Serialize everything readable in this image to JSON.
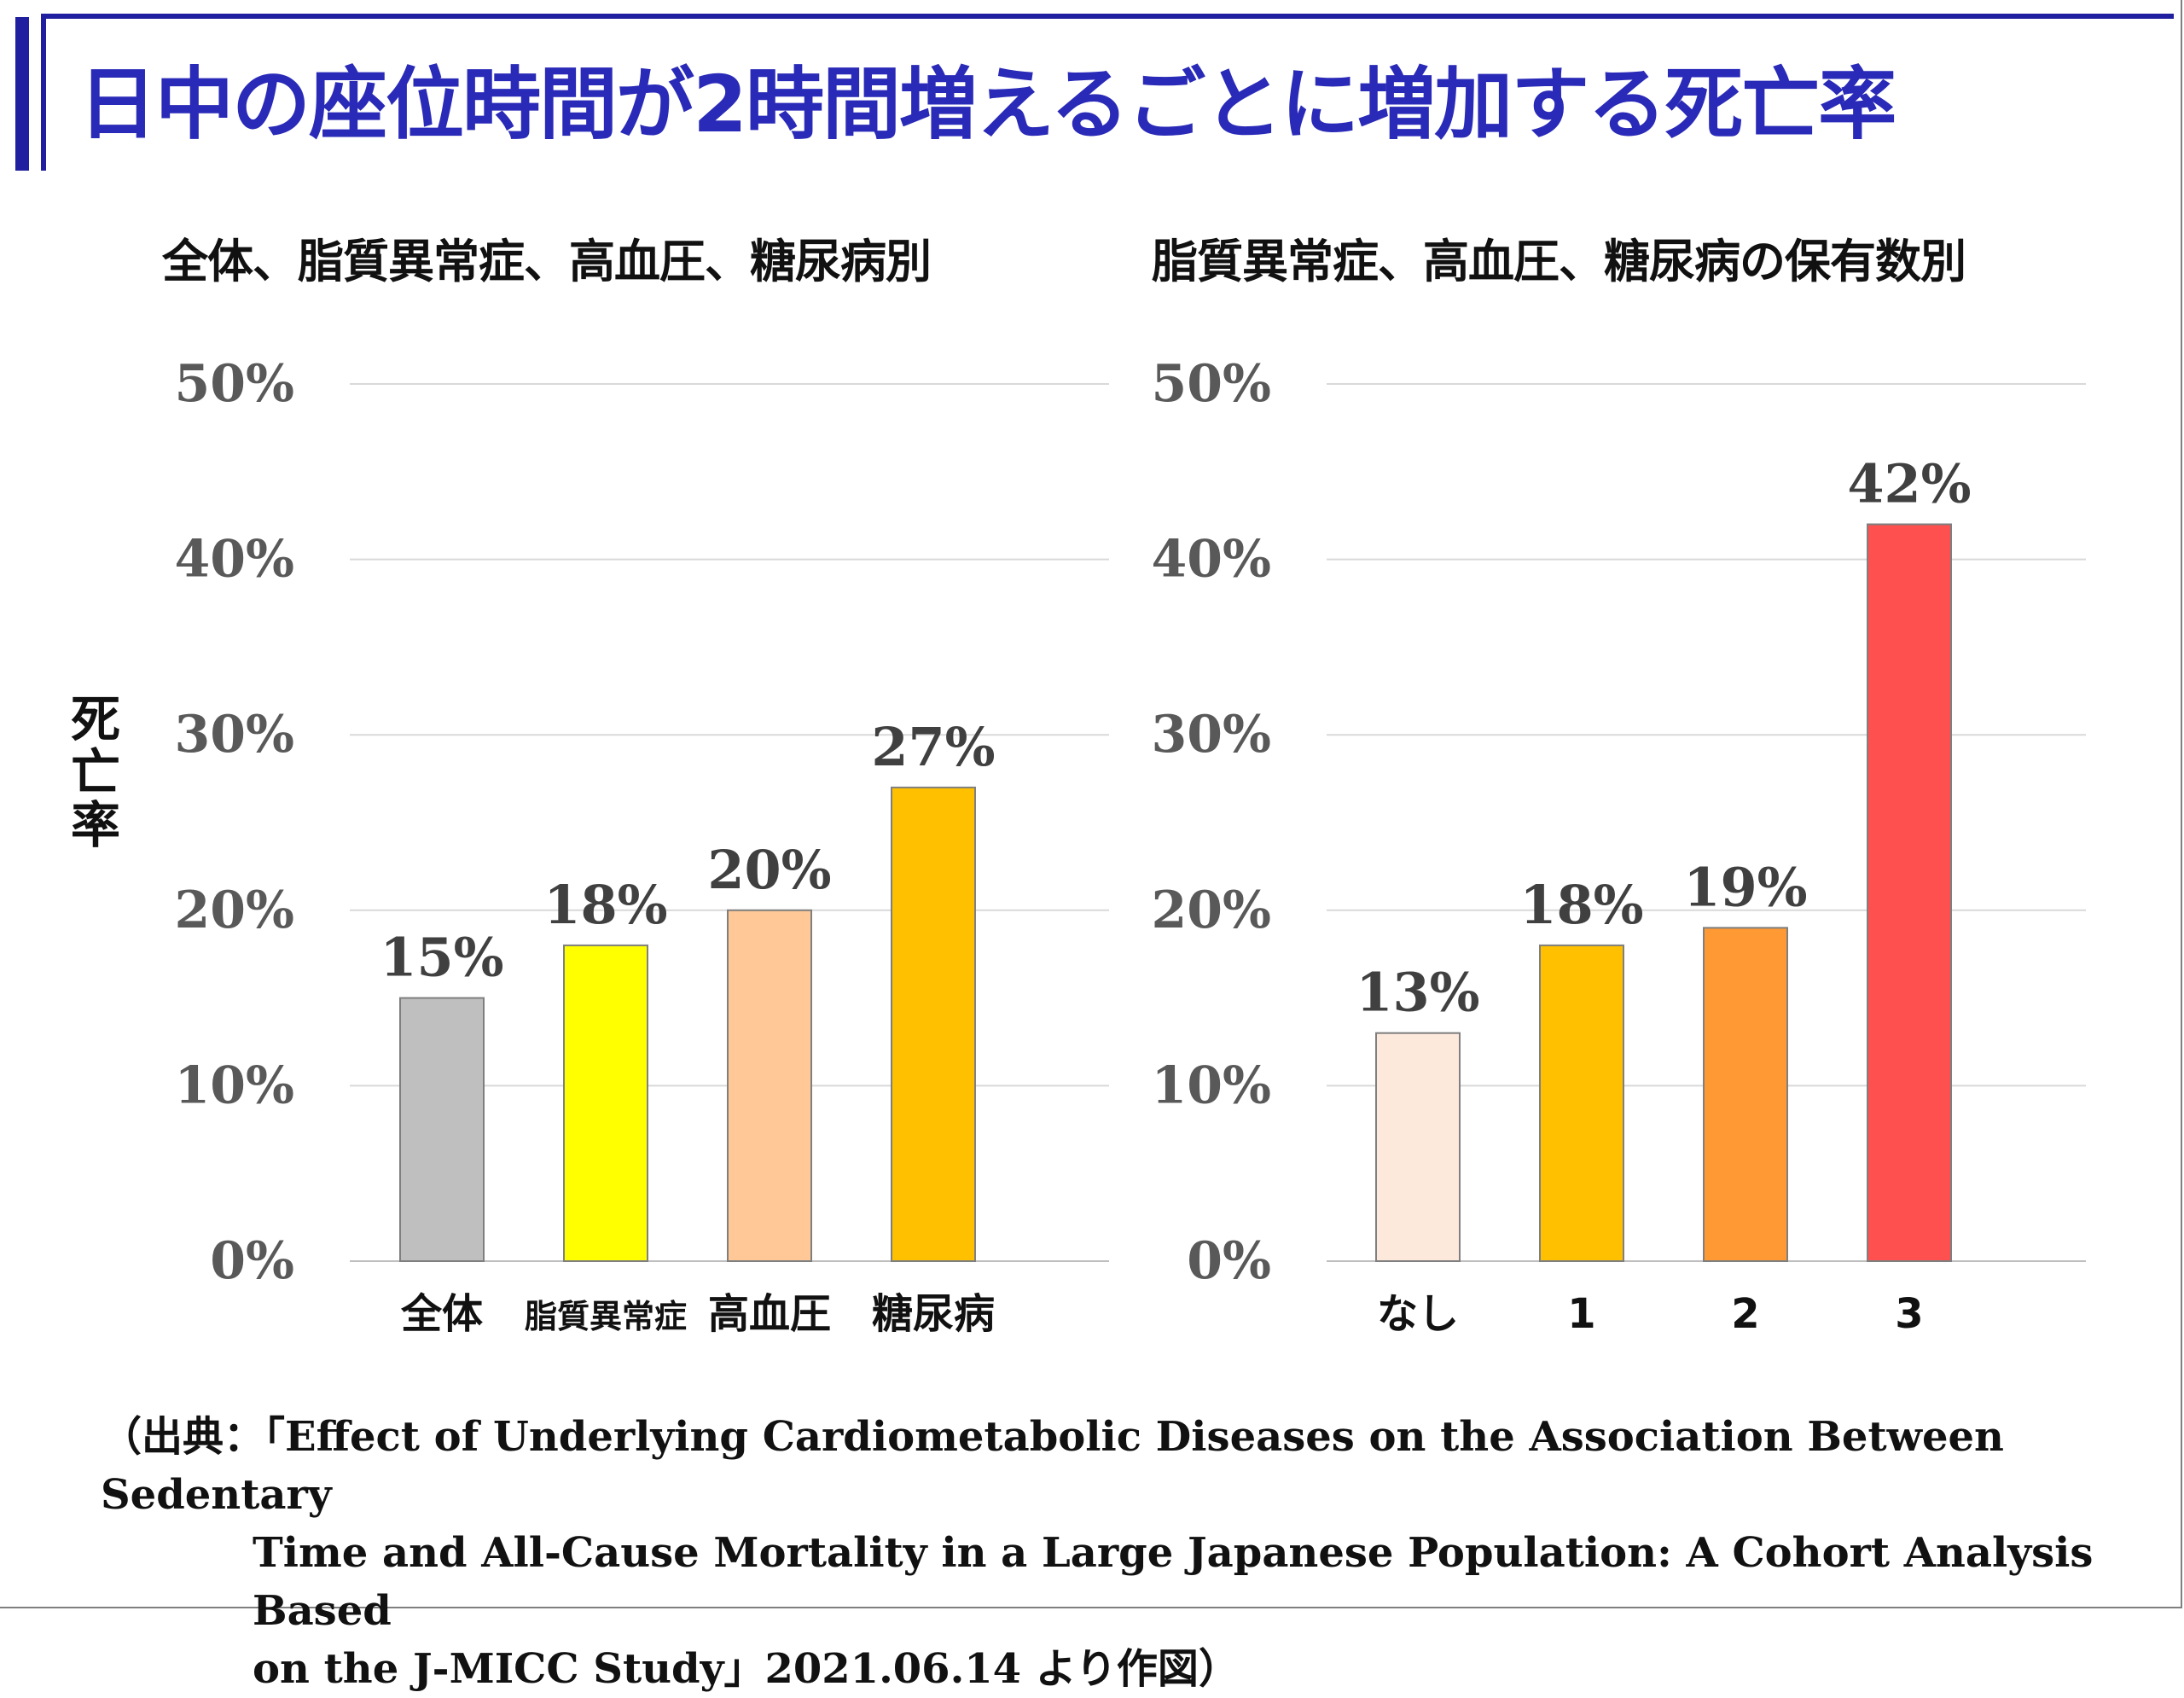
{
  "title": "日中の座位時間が2時間増えるごとに増加する死亡率",
  "y_axis_label": [
    "死",
    "亡",
    "率"
  ],
  "source": {
    "line1": "（出典：「Effect of Underlying  Cardiometabolic  Diseases on the Association  Between Sedentary",
    "line2": "Time and All-Cause Mortality  in a Large Japanese Population: A Cohort Analysis  Based",
    "line3": "on the J-MICC  Study」2021.06.14   より作図）"
  },
  "chart_data": [
    {
      "type": "bar",
      "title": "全体、脂質異常症、高血圧、糖尿病別",
      "ylabel": "死亡率",
      "ylim": [
        0,
        50
      ],
      "yticks": [
        "0%",
        "10%",
        "20%",
        "30%",
        "40%",
        "50%"
      ],
      "grid": true,
      "categories": [
        "全体",
        "脂質異常症",
        "高血圧",
        "糖尿病"
      ],
      "values": [
        15,
        18,
        20,
        27
      ],
      "data_labels": [
        "15%",
        "18%",
        "20%",
        "27%"
      ],
      "colors": [
        "#bfbfbf",
        "#ffff00",
        "#ffc896",
        "#ffc000"
      ]
    },
    {
      "type": "bar",
      "title": "脂質異常症、高血圧、糖尿病の保有数別",
      "ylabel": "死亡率",
      "ylim": [
        0,
        50
      ],
      "yticks": [
        "0%",
        "10%",
        "20%",
        "30%",
        "40%",
        "50%"
      ],
      "grid": true,
      "categories": [
        "なし",
        "1",
        "2",
        "3"
      ],
      "values": [
        13,
        18,
        19,
        42
      ],
      "data_labels": [
        "13%",
        "18%",
        "19%",
        "42%"
      ],
      "colors": [
        "#fde9dc",
        "#ffc000",
        "#ff9933",
        "#ff5050"
      ]
    }
  ]
}
